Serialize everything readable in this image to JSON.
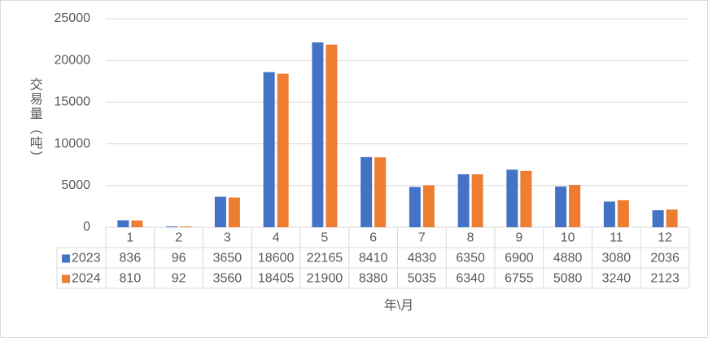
{
  "chart_data": {
    "type": "bar",
    "xlabel": "年\\月",
    "ylabel": "交易量（吨）",
    "categories": [
      "1",
      "2",
      "3",
      "4",
      "5",
      "6",
      "7",
      "8",
      "9",
      "10",
      "11",
      "12"
    ],
    "series": [
      {
        "name": "2023",
        "color": "#4472c4",
        "values": [
          836,
          96,
          3650,
          18600,
          22165,
          8410,
          4830,
          6350,
          6900,
          4880,
          3080,
          2036
        ]
      },
      {
        "name": "2024",
        "color": "#ed7d31",
        "values": [
          810,
          92,
          3560,
          18405,
          21900,
          8380,
          5035,
          6340,
          6755,
          5080,
          3240,
          2123
        ]
      }
    ],
    "ylim": [
      0,
      25000
    ],
    "yticks": [
      0,
      5000,
      10000,
      15000,
      20000,
      25000
    ],
    "grid": true
  }
}
